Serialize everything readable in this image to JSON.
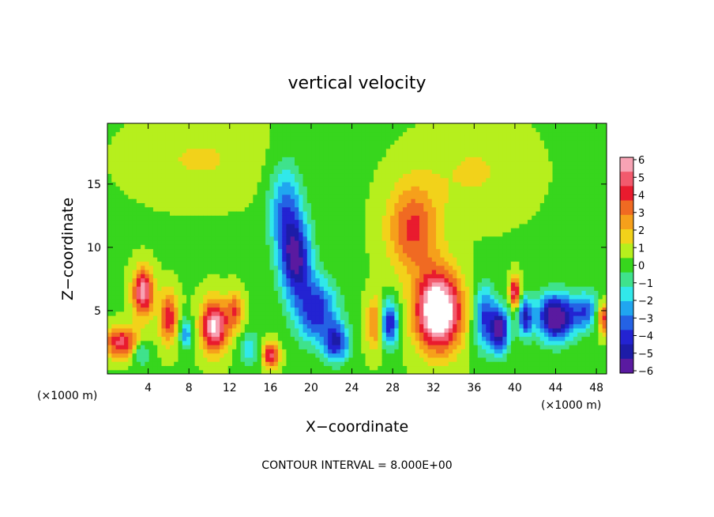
{
  "chart_data": {
    "type": "heatmap",
    "title": "vertical velocity",
    "xlabel": "X−coordinate",
    "ylabel": "Z−coordinate",
    "x_units_left": "(×1000 m)",
    "x_units_right": "(×1000 m)",
    "xlim": [
      0,
      49
    ],
    "ylim": [
      0,
      19.8
    ],
    "x_ticks": [
      4,
      8,
      12,
      16,
      20,
      24,
      28,
      32,
      36,
      40,
      44,
      48
    ],
    "y_ticks": [
      5,
      10,
      15
    ],
    "colorbar": {
      "range": [
        -6,
        6
      ],
      "labels": [
        "6",
        "5",
        "4",
        "3",
        "2",
        "1",
        "0",
        "−1",
        "−2",
        "−3",
        "−4",
        "−5",
        "−6"
      ],
      "colors": [
        "#f7a3b4",
        "#f25a6d",
        "#e91b2e",
        "#f06a22",
        "#f6a01b",
        "#f2d21a",
        "#b6ef1d",
        "#37d61d",
        "#3fe28c",
        "#31e8ea",
        "#20a6f0",
        "#2462e4",
        "#2323d2",
        "#1d1ca8",
        "#5a1aa0"
      ]
    },
    "footer": "CONTOUR INTERVAL = 8.000E+00",
    "features": [
      {
        "x": 1.5,
        "z": 2.5,
        "w": 4.5,
        "sx": 1.8,
        "sz": 1.2
      },
      {
        "x": 3.5,
        "z": 6.5,
        "w": 5.5,
        "sx": 1.0,
        "sz": 1.8
      },
      {
        "x": 3.2,
        "z": 1.8,
        "w": -2.5,
        "sx": 1.0,
        "sz": 1.0
      },
      {
        "x": 6.0,
        "z": 4.5,
        "w": 4.0,
        "sx": 0.9,
        "sz": 2.0
      },
      {
        "x": 7.7,
        "z": 3.2,
        "w": -3.0,
        "sx": 0.6,
        "sz": 1.2
      },
      {
        "x": 10.5,
        "z": 3.8,
        "w": 6.0,
        "sx": 1.3,
        "sz": 2.0
      },
      {
        "x": 12.5,
        "z": 5.0,
        "w": 3.0,
        "sx": 0.8,
        "sz": 1.5
      },
      {
        "x": 14.0,
        "z": 2.0,
        "w": -2.0,
        "sx": 1.0,
        "sz": 1.3
      },
      {
        "x": 16.0,
        "z": 1.5,
        "w": 4.5,
        "sx": 0.8,
        "sz": 1.0
      },
      {
        "x": 17.5,
        "z": 13.0,
        "w": -3.5,
        "sx": 1.6,
        "sz": 3.5
      },
      {
        "x": 18.5,
        "z": 9.0,
        "w": -5.5,
        "sx": 1.5,
        "sz": 3.0
      },
      {
        "x": 20.5,
        "z": 5.0,
        "w": -4.5,
        "sx": 2.0,
        "sz": 2.5
      },
      {
        "x": 22.5,
        "z": 2.5,
        "w": -4.5,
        "sx": 1.2,
        "sz": 1.5
      },
      {
        "x": 26.5,
        "z": 4.0,
        "w": 4.0,
        "sx": 1.0,
        "sz": 2.0
      },
      {
        "x": 27.5,
        "z": 4.0,
        "w": -6.0,
        "sx": 1.0,
        "sz": 1.8
      },
      {
        "x": 30.0,
        "z": 11.5,
        "w": 3.5,
        "sx": 2.5,
        "sz": 3.5
      },
      {
        "x": 32.5,
        "z": 5.0,
        "w": 8.0,
        "sx": 2.2,
        "sz": 3.0
      },
      {
        "x": 37.0,
        "z": 4.5,
        "w": -4.0,
        "sx": 1.0,
        "sz": 2.5
      },
      {
        "x": 38.5,
        "z": 3.5,
        "w": -6.0,
        "sx": 0.9,
        "sz": 1.8
      },
      {
        "x": 40.0,
        "z": 6.5,
        "w": 5.0,
        "sx": 0.5,
        "sz": 1.2
      },
      {
        "x": 41.0,
        "z": 4.5,
        "w": -4.5,
        "sx": 0.7,
        "sz": 1.5
      },
      {
        "x": 44.0,
        "z": 4.5,
        "w": -7.0,
        "sx": 1.8,
        "sz": 1.8
      },
      {
        "x": 47.0,
        "z": 5.0,
        "w": -3.5,
        "sx": 1.3,
        "sz": 1.5
      },
      {
        "x": 48.8,
        "z": 4.5,
        "w": 4.0,
        "sx": 0.8,
        "sz": 1.2
      },
      {
        "x": 9.0,
        "z": 17.0,
        "w": 1.0,
        "sx": 6.0,
        "sz": 3.0
      },
      {
        "x": 36.0,
        "z": 16.0,
        "w": 1.0,
        "sx": 5.0,
        "sz": 3.5
      }
    ]
  }
}
